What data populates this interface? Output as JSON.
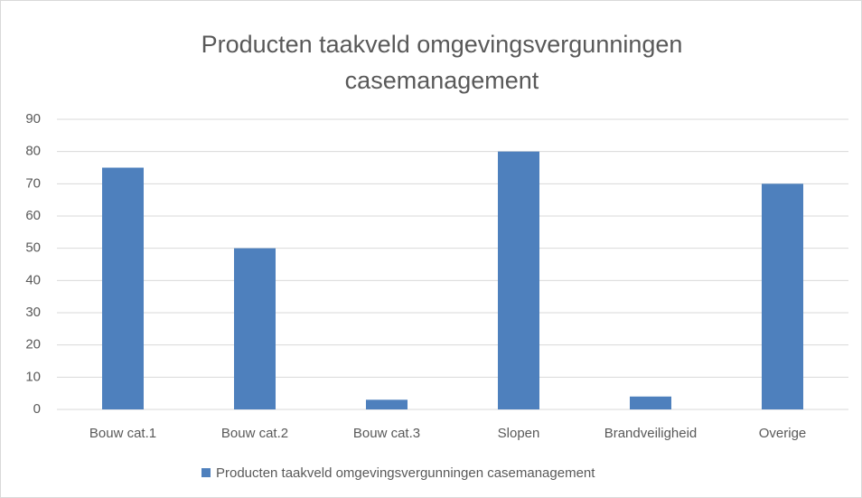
{
  "chart_data": {
    "type": "bar",
    "title": "Producten taakveld omgevingsvergunningen casemanagement",
    "categories": [
      "Bouw cat.1",
      "Bouw cat.2",
      "Bouw cat.3",
      "Slopen",
      "Brandveiligheid",
      "Overige"
    ],
    "series": [
      {
        "name": "Producten taakveld omgevingsvergunningen casemanagement",
        "color": "#4e80bd",
        "values": [
          75,
          50,
          3,
          80,
          4,
          70
        ]
      }
    ],
    "ylim": [
      0,
      90
    ],
    "yticks": [
      0,
      10,
      20,
      30,
      40,
      50,
      60,
      70,
      80,
      90
    ],
    "grid": true,
    "legend": "bottom"
  }
}
